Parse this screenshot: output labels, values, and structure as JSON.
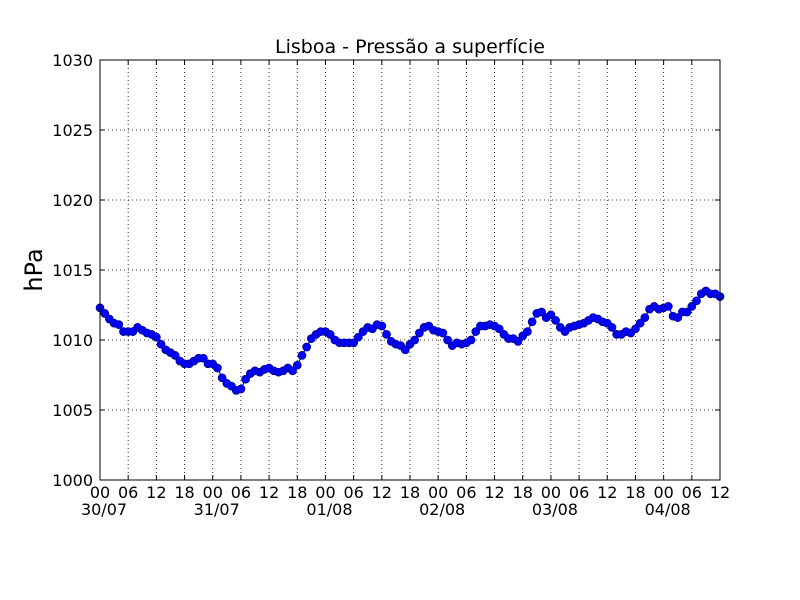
{
  "chart_data": {
    "type": "line",
    "title": "Lisboa - Pressão a superfície",
    "xlabel": "",
    "ylabel": "hPa",
    "ylim": [
      1000,
      1030
    ],
    "yticks": [
      1000,
      1005,
      1010,
      1015,
      1020,
      1025,
      1030
    ],
    "xlim": [
      0,
      132
    ],
    "x_unit": "hours since 30/07 00:00",
    "x_tick_labels": [
      "00",
      "06",
      "12",
      "18",
      "00",
      "06",
      "12",
      "18",
      "00",
      "06",
      "12",
      "18",
      "00",
      "06",
      "12",
      "18",
      "00",
      "06",
      "12",
      "18",
      "00",
      "06",
      "12"
    ],
    "x_tick_hours": [
      0,
      6,
      12,
      18,
      24,
      30,
      36,
      42,
      48,
      54,
      60,
      66,
      72,
      78,
      84,
      90,
      96,
      102,
      108,
      114,
      120,
      126,
      132
    ],
    "date_labels": [
      "30/07",
      "31/07",
      "01/08",
      "02/08",
      "03/08",
      "04/08"
    ],
    "date_label_hours": [
      0,
      24,
      48,
      72,
      96,
      120
    ],
    "grid": true,
    "grid_style": "dotted",
    "marker": "circle",
    "series_color": "#0000ff",
    "marker_edge_color": "#000080",
    "series": [
      {
        "name": "",
        "x": [
          0,
          1,
          2,
          3,
          4,
          5,
          6,
          7,
          8,
          9,
          10,
          11,
          12,
          13,
          14,
          15,
          16,
          17,
          18,
          19,
          20,
          21,
          22,
          23,
          24,
          25,
          26,
          27,
          28,
          29,
          30,
          31,
          32,
          33,
          34,
          35,
          36,
          37,
          38,
          39,
          40,
          41,
          42,
          43,
          44,
          45,
          46,
          47,
          48,
          49,
          50,
          51,
          52,
          53,
          54,
          55,
          56,
          57,
          58,
          59,
          60,
          61,
          62,
          63,
          64,
          65,
          66,
          67,
          68,
          69,
          70,
          71,
          72,
          73,
          74,
          75,
          76,
          77,
          78,
          79,
          80,
          81,
          82,
          83,
          84,
          85,
          86,
          87,
          88,
          89,
          90,
          91,
          92,
          93,
          94,
          95,
          96,
          97,
          98,
          99,
          100,
          101,
          102,
          103,
          104,
          105,
          106,
          107,
          108,
          109,
          110,
          111,
          112,
          113,
          114,
          115,
          116,
          117,
          118,
          119,
          120,
          121,
          122,
          123,
          124,
          125,
          126,
          127,
          128,
          129,
          130,
          131,
          132
        ],
        "y": [
          1012.3,
          1011.9,
          1011.5,
          1011.2,
          1011.1,
          1010.6,
          1010.6,
          1010.6,
          1010.9,
          1010.7,
          1010.5,
          1010.4,
          1010.2,
          1009.7,
          1009.3,
          1009.1,
          1008.9,
          1008.5,
          1008.3,
          1008.3,
          1008.5,
          1008.7,
          1008.7,
          1008.3,
          1008.3,
          1008.0,
          1007.3,
          1006.9,
          1006.7,
          1006.4,
          1006.5,
          1007.2,
          1007.6,
          1007.8,
          1007.7,
          1007.9,
          1008.0,
          1007.8,
          1007.7,
          1007.8,
          1008.0,
          1007.8,
          1008.2,
          1008.9,
          1009.5,
          1010.1,
          1010.4,
          1010.6,
          1010.6,
          1010.4,
          1010.0,
          1009.8,
          1009.8,
          1009.8,
          1009.8,
          1010.2,
          1010.6,
          1010.9,
          1010.8,
          1011.1,
          1011.0,
          1010.4,
          1009.9,
          1009.7,
          1009.6,
          1009.3,
          1009.7,
          1010.0,
          1010.5,
          1010.9,
          1011.0,
          1010.7,
          1010.6,
          1010.5,
          1010.0,
          1009.6,
          1009.8,
          1009.7,
          1009.8,
          1010.0,
          1010.6,
          1011.0,
          1011.0,
          1011.1,
          1011.0,
          1010.8,
          1010.4,
          1010.1,
          1010.1,
          1009.9,
          1010.3,
          1010.6,
          1011.3,
          1011.9,
          1012.0,
          1011.6,
          1011.8,
          1011.4,
          1010.9,
          1010.6,
          1010.9,
          1011.0,
          1011.1,
          1011.2,
          1011.4,
          1011.6,
          1011.5,
          1011.3,
          1011.2,
          1010.9,
          1010.4,
          1010.4,
          1010.6,
          1010.5,
          1010.8,
          1011.2,
          1011.6,
          1012.2,
          1012.4,
          1012.2,
          1012.3,
          1012.4,
          1011.7,
          1011.6,
          1012.0,
          1012.0,
          1012.4,
          1012.8,
          1013.3,
          1013.5,
          1013.3,
          1013.3,
          1013.1
        ]
      }
    ]
  }
}
